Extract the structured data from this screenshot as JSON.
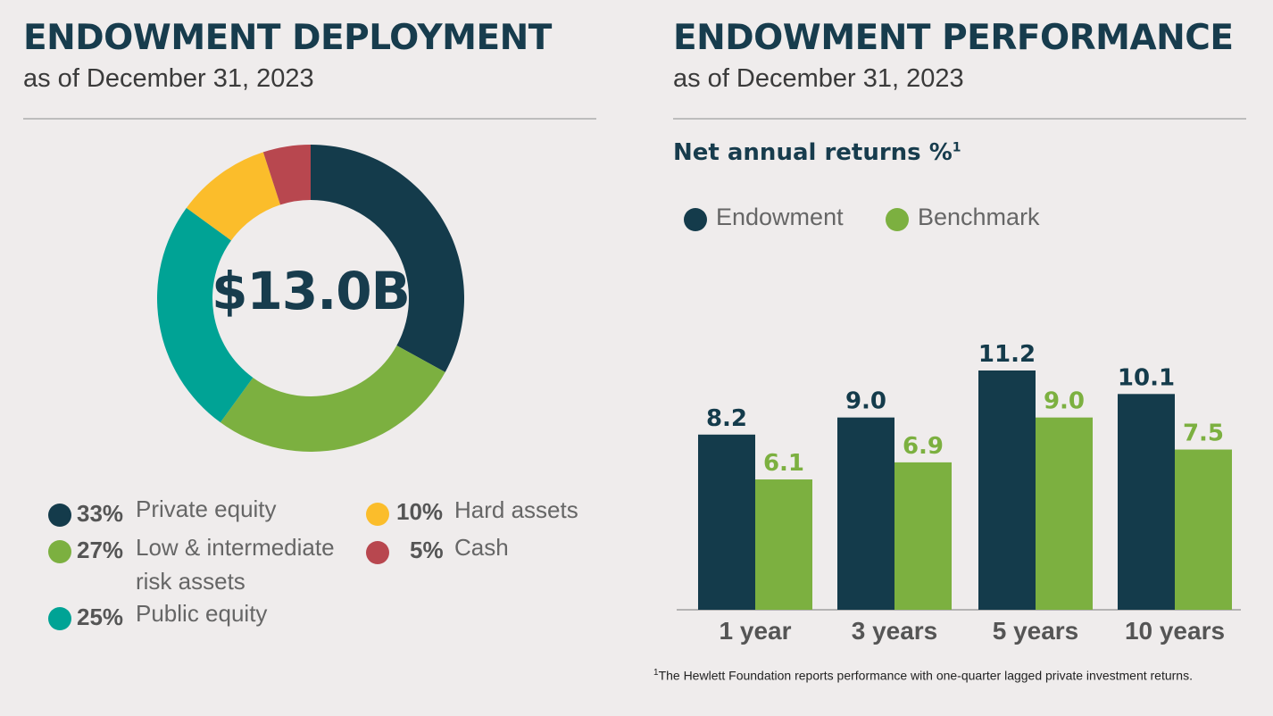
{
  "left": {
    "title": "ENDOWMENT DEPLOYMENT",
    "subtitle": "as of December 31, 2023",
    "center_value": "$13.0B",
    "legend": [
      {
        "pct": "33%",
        "label": "Private equity",
        "color": "#143b4b"
      },
      {
        "pct": "27%",
        "label": "Low & intermediate",
        "label2": "risk assets",
        "color": "#7cb040"
      },
      {
        "pct": "25%",
        "label": "Public equity",
        "color": "#00a395"
      },
      {
        "pct": "10%",
        "label": "Hard assets",
        "color": "#fbbd2b"
      },
      {
        "pct": "5%",
        "label": "Cash",
        "color": "#b8474f"
      }
    ]
  },
  "right": {
    "title": "ENDOWMENT PERFORMANCE",
    "subtitle": "as of December 31, 2023",
    "chart_heading": "Net annual returns %",
    "chart_heading_sup": "1",
    "footnote_sup": "1",
    "footnote": "The Hewlett Foundation reports performance with one-quarter lagged private investment returns."
  },
  "chart_data": [
    {
      "type": "pie",
      "title": "",
      "categories": [
        "Private equity",
        "Low & intermediate risk assets",
        "Public equity",
        "Hard assets",
        "Cash"
      ],
      "values": [
        33,
        27,
        25,
        10,
        5
      ],
      "colors": [
        "#143b4b",
        "#7cb040",
        "#00a395",
        "#fbbd2b",
        "#b8474f"
      ],
      "center_label": "$13.0B"
    },
    {
      "type": "bar",
      "title": "Net annual returns %",
      "categories": [
        "1 year",
        "3 years",
        "5 years",
        "10 years"
      ],
      "series": [
        {
          "name": "Endowment",
          "values": [
            8.2,
            9.0,
            11.2,
            10.1
          ],
          "labels": [
            "8.2",
            "9.0",
            "11.2",
            "10.1"
          ],
          "color": "#143b4b"
        },
        {
          "name": "Benchmark",
          "values": [
            6.1,
            6.9,
            9.0,
            7.5
          ],
          "labels": [
            "6.1",
            "6.9",
            "9.0",
            "7.5"
          ],
          "color": "#7cb040"
        }
      ],
      "ylim": [
        0,
        11.2
      ],
      "legend_position": "top-left",
      "grid": false
    }
  ]
}
